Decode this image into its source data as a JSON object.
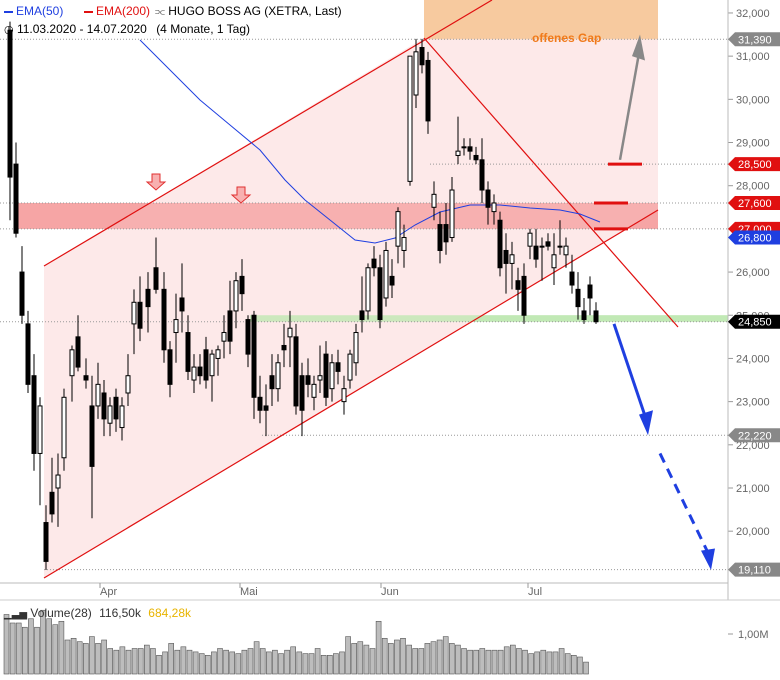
{
  "header": {
    "legend": [
      {
        "label": "EMA(50)",
        "color": "#1f3fe0"
      },
      {
        "label": "EMA(200)",
        "color": "#e01010"
      }
    ],
    "instrument": "HUGO BOSS AG (XETRA, Last)",
    "icon": "chart-type-icon",
    "clock_icon": "clock-icon",
    "range": "11.03.2020 - 14.07.2020",
    "period": "(4 Monate, 1 Tag)"
  },
  "annotations": {
    "gap_label": "offenes Gap"
  },
  "volume_header": {
    "title": "Volume(28)",
    "value": "116,50k",
    "avg": "684,28k",
    "avg_color": "#e8b400",
    "icon": "volume-bars-icon"
  },
  "chart_data": {
    "type": "candlestick",
    "title": "HUGO BOSS AG (XETRA, Last)",
    "ylim": [
      18.8,
      32.3
    ],
    "y_ticks": [
      "32,000",
      "31,000",
      "30,000",
      "29,000",
      "28,000",
      "27,000",
      "26,000",
      "25,000",
      "24,000",
      "23,000",
      "22,000",
      "21,000",
      "20,000"
    ],
    "x_ticks": [
      "Apr",
      "Mai",
      "Jun",
      "Jul"
    ],
    "price_tags": [
      {
        "label": "31,390",
        "value": 31.39,
        "color": "#888888"
      },
      {
        "label": "28,500",
        "value": 28.5,
        "color": "#e01010"
      },
      {
        "label": "27,600",
        "value": 27.6,
        "color": "#e01010"
      },
      {
        "label": "27,000",
        "value": 27.0,
        "color": "#e01010"
      },
      {
        "label": "26,800",
        "value": 26.8,
        "color": "#1f3fe0"
      },
      {
        "label": "24,850",
        "value": 24.85,
        "color": "#000000"
      },
      {
        "label": "22,220",
        "value": 22.22,
        "color": "#888888"
      },
      {
        "label": "19,110",
        "value": 19.11,
        "color": "#888888"
      }
    ],
    "zones": [
      {
        "name": "offenes Gap",
        "from": 31.39,
        "to": 32.3,
        "color": "#f7c99c"
      },
      {
        "name": "resistance",
        "from": 27.0,
        "to": 27.6,
        "color": "#f5a3a3"
      },
      {
        "name": "support",
        "from": 24.85,
        "to": 25.0,
        "color": "#bfe8b3"
      }
    ],
    "volume_ticks": [
      "1,00M"
    ],
    "grid": true
  }
}
